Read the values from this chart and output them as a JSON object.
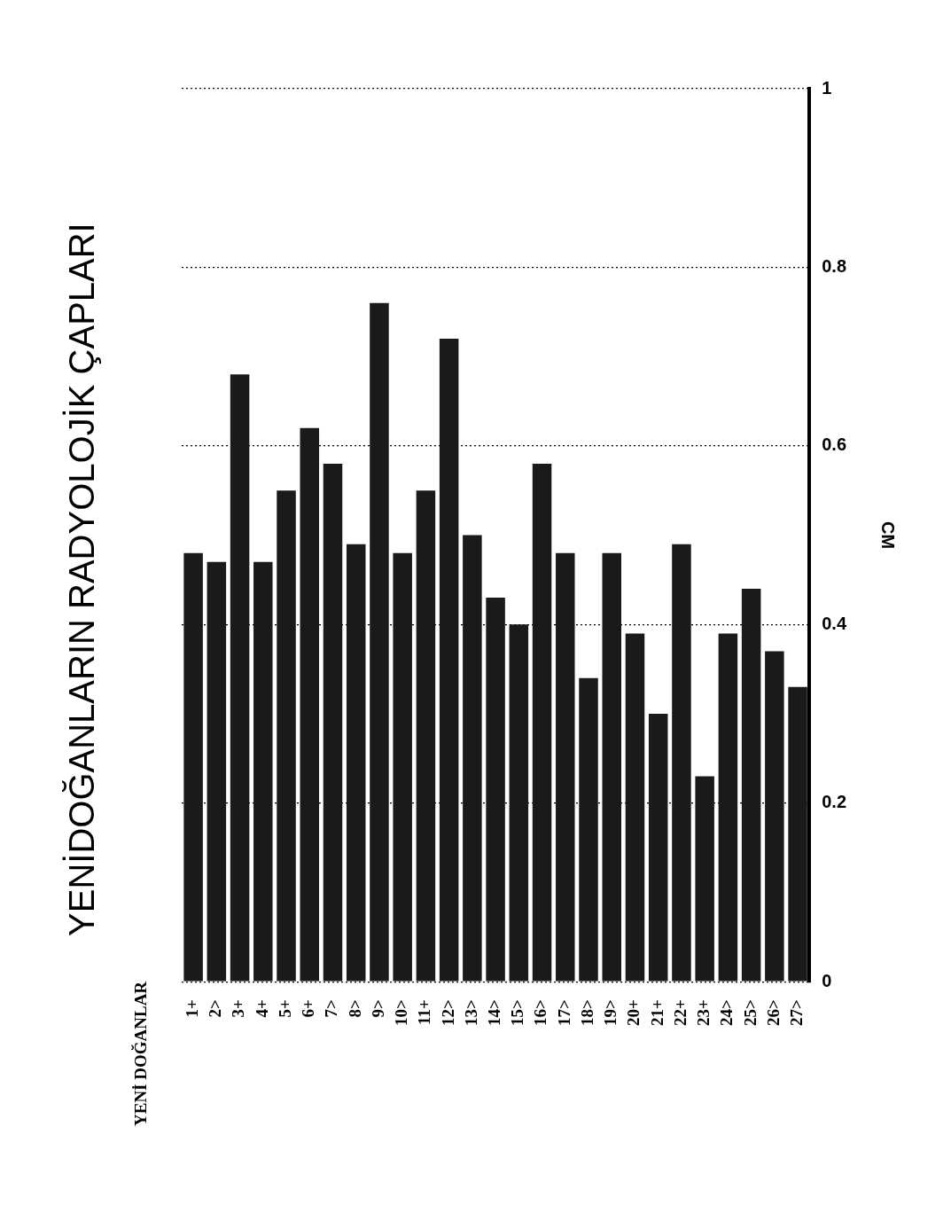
{
  "chart_data": {
    "type": "bar",
    "title": "YENİDOĞANLARIN RADYOLOJİK ÇAPLARI",
    "annotations": [
      "YENİ DOĞANLAR"
    ],
    "ylabel": "CM",
    "categories": [
      "1+",
      "2>",
      "3+",
      "4+",
      "5+",
      "6+",
      "7>",
      "8>",
      "9>",
      "10>",
      "11+",
      "12>",
      "13>",
      "14>",
      "15>",
      "16>",
      "17>",
      "18>",
      "19>",
      "20+",
      "21+",
      "22+",
      "23+",
      "24>",
      "25>",
      "26>",
      "27>"
    ],
    "values": [
      0.48,
      0.47,
      0.68,
      0.47,
      0.55,
      0.62,
      0.58,
      0.49,
      0.76,
      0.48,
      0.55,
      0.72,
      0.5,
      0.43,
      0.4,
      0.58,
      0.48,
      0.34,
      0.48,
      0.39,
      0.3,
      0.49,
      0.23,
      0.39,
      0.44,
      0.37,
      0.33
    ],
    "color": "#1a1a1a",
    "ylim": [
      0,
      1
    ],
    "yticks": [
      0,
      0.2,
      0.4,
      0.6,
      0.8,
      1
    ],
    "grid": "y"
  }
}
